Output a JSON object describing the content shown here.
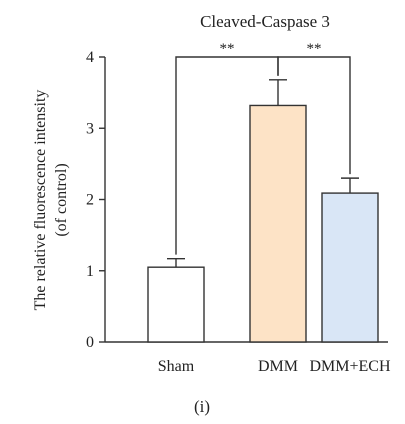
{
  "chart_data": {
    "type": "bar",
    "title": "Cleaved-Caspase 3",
    "ylabel_lines": [
      "The relative fluorescence intensity",
      "(of control)"
    ],
    "xlabel": "",
    "categories": [
      "Sham",
      "DMM",
      "DMM+ECH"
    ],
    "values": [
      1.05,
      3.32,
      2.09
    ],
    "errors": [
      0.12,
      0.36,
      0.21
    ],
    "ylim": [
      0,
      4
    ],
    "yticks": [
      0,
      1,
      2,
      3,
      4
    ],
    "bar_colors": [
      "#ffffff",
      "#fde3c6",
      "#d9e6f6"
    ],
    "edge_color": "#333333",
    "grid": false,
    "significance": [
      {
        "from": 0,
        "to": 1,
        "label": "**"
      },
      {
        "from": 1,
        "to": 2,
        "label": "**"
      }
    ],
    "bracket_level": 4.0
  },
  "panel_label": "(i)"
}
